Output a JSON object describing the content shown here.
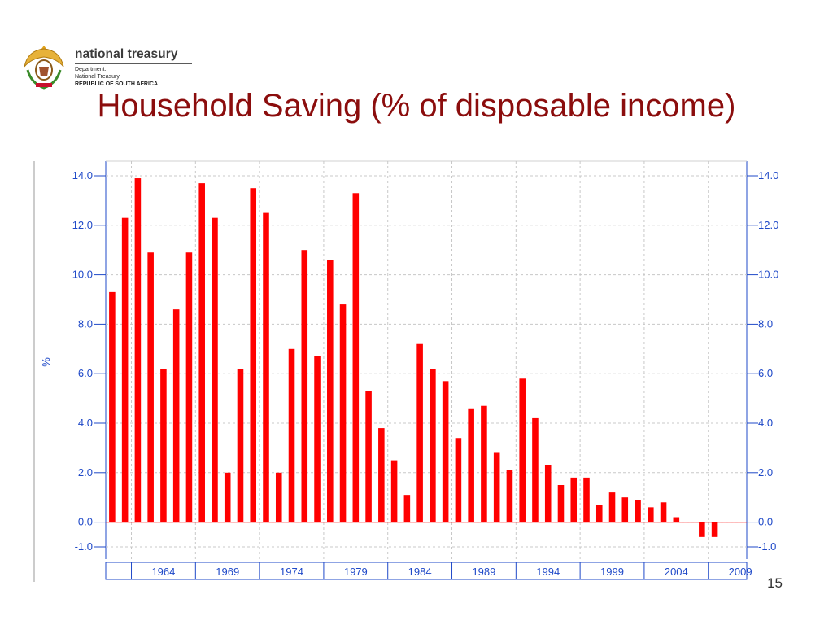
{
  "logo": {
    "brand": "national treasury",
    "line1": "Department:",
    "line2": "National Treasury",
    "line3": "REPUBLIC OF SOUTH AFRICA"
  },
  "slide": {
    "title": "Household Saving (% of disposable income)",
    "page_number": "15"
  },
  "colors": {
    "bar": "#ff0000",
    "axis": "#1f49c8",
    "title": "#8b0d0d",
    "grid": "#c8c8c8"
  },
  "chart_data": {
    "type": "bar",
    "title": "Household Saving (% of disposable income)",
    "ylabel": "%",
    "ylim": [
      -1.0,
      14.0
    ],
    "yticks": [
      "14.0",
      "12.0",
      "10.0",
      "8.0",
      "6.0",
      "4.0",
      "2.0",
      "0.0",
      "-1.0"
    ],
    "ytick_values": [
      14,
      12,
      10,
      8,
      6,
      4,
      2,
      0,
      -1
    ],
    "x_start_year": 1960,
    "x_tick_labels": [
      "1964",
      "1969",
      "1974",
      "1979",
      "1984",
      "1989",
      "1994",
      "1999",
      "2004",
      "2009"
    ],
    "x_tick_years": [
      1964,
      1969,
      1974,
      1979,
      1984,
      1989,
      1994,
      1999,
      2004,
      2009
    ],
    "grid": true,
    "values": [
      9.3,
      12.3,
      13.9,
      10.9,
      6.2,
      8.6,
      10.9,
      13.7,
      12.3,
      2.0,
      6.2,
      13.5,
      12.5,
      2.0,
      7.0,
      11.0,
      6.7,
      10.6,
      8.8,
      13.3,
      5.3,
      3.8,
      2.5,
      1.1,
      7.2,
      6.2,
      5.7,
      3.4,
      4.6,
      4.7,
      2.8,
      2.1,
      5.8,
      4.2,
      2.3,
      1.5,
      1.8,
      1.8,
      0.7,
      1.2,
      1.0,
      0.9,
      0.6,
      0.8,
      0.2,
      0.0,
      -0.6,
      -0.6,
      0.0,
      0.0
    ]
  }
}
